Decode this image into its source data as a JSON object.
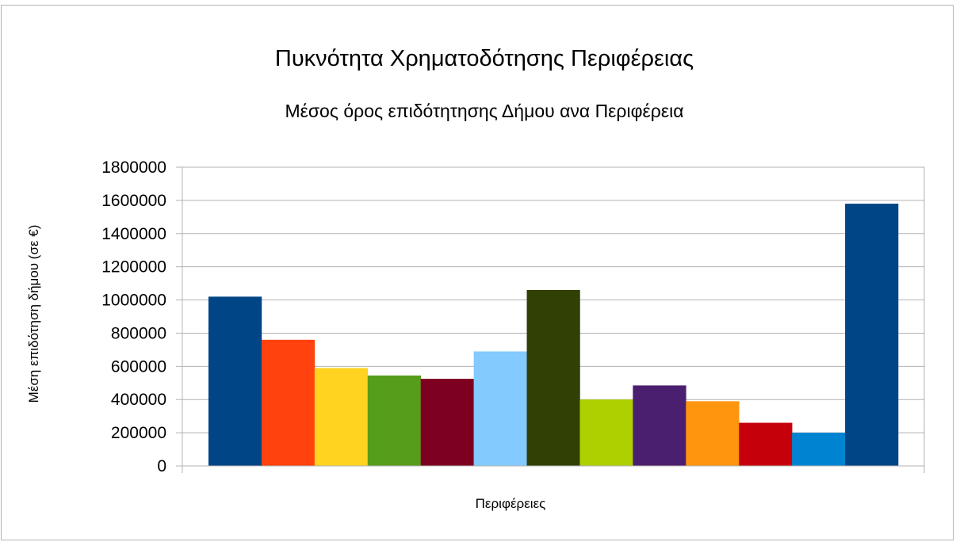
{
  "chart_data": {
    "type": "bar",
    "title": "Πυκνότητα Χρηματοδότησης Περιφέρειας",
    "subtitle": "Μέσος όρος επιδότητησης Δήμου ανα Περιφέρεια",
    "xlabel": "Περιφέρειες",
    "ylabel": "Μέση επιδότηση δήμου (σε €)",
    "ylim": [
      0,
      1800000
    ],
    "yticks": [
      0,
      200000,
      400000,
      600000,
      800000,
      1000000,
      1200000,
      1400000,
      1600000,
      1800000
    ],
    "grid": true,
    "legend": "none",
    "values": [
      1020000,
      760000,
      590000,
      545000,
      525000,
      690000,
      1060000,
      400000,
      485000,
      390000,
      260000,
      200000,
      1580000
    ],
    "colors": [
      "#004586",
      "#ff420e",
      "#ffd320",
      "#579d1c",
      "#7e0021",
      "#83caff",
      "#314004",
      "#aecf00",
      "#4b1f6f",
      "#ff950e",
      "#c5000b",
      "#0084d1",
      "#004586"
    ]
  }
}
